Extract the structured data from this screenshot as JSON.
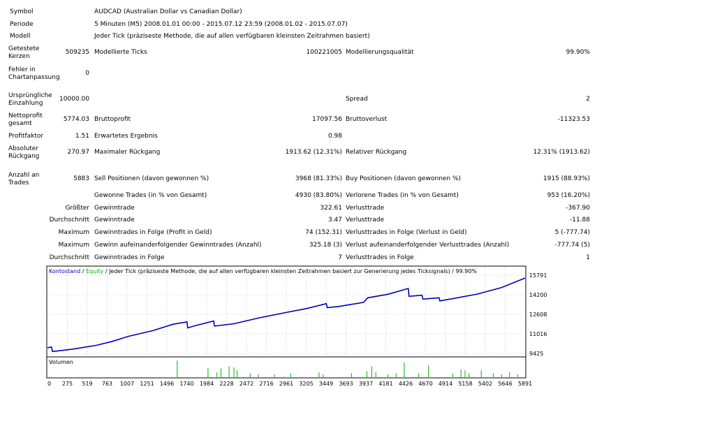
{
  "header": {
    "symbol_label": "Symbol",
    "symbol_value": "AUDCAD (Australian Dollar vs Canadian Dollar)",
    "period_label": "Periode",
    "period_value": "5 Minuten (M5) 2008.01.01 00:00 - 2015.07.12 23:59 (2008.01.02 - 2015.07.07)",
    "model_label": "Modell",
    "model_value": "Jeder Tick (präziseste Methode, die auf allen verfügbaren kleinsten Zeitrahmen basiert)"
  },
  "stats": {
    "bars_tested_label_1": "Getestete",
    "bars_tested_label_2": "Kerzen",
    "bars_tested": "509235",
    "ticks_modelled_label": "Modellierte Ticks",
    "ticks_modelled": "100221005",
    "modelling_quality_label": "Modellierungsqualität",
    "modelling_quality": "99.90%",
    "mismatch_label_1": "Fehler in",
    "mismatch_label_2": "Chartanpassung",
    "mismatch": "0",
    "initial_deposit_label_1": "Ursprüngliche",
    "initial_deposit_label_2": "Einzahlung",
    "initial_deposit": "10000.00",
    "spread_label": "Spread",
    "spread": "2",
    "net_profit_label_1": "Nettoprofit",
    "net_profit_label_2": "gesamt",
    "net_profit": "5774.03",
    "gross_profit_label": "Bruttoprofit",
    "gross_profit": "17097.56",
    "gross_loss_label": "Bruttoverlust",
    "gross_loss": "-11323.53",
    "profit_factor_label": "Profitfaktor",
    "profit_factor": "1.51",
    "expected_payoff_label": "Erwartetes Ergebnis",
    "expected_payoff": "0.98",
    "abs_dd_label_1": "Absoluter",
    "abs_dd_label_2": "Rückgang",
    "abs_dd": "270.97",
    "max_dd_label": "Maximaler Rückgang",
    "max_dd": "1913.62 (12.31%)",
    "rel_dd_label": "Relativer Rückgang",
    "rel_dd": "12.31% (1913.62)",
    "total_trades_label_1": "Anzahl an",
    "total_trades_label_2": "Trades",
    "total_trades": "5883",
    "short_label": "Sell Positionen (davon gewonnen %)",
    "short": "3968 (81.33%)",
    "long_label": "Buy Positionen (davon gewonnen %)",
    "long": "1915 (88.93%)",
    "profit_trades_label": "Gewonne Trades (in % von Gesamt)",
    "profit_trades": "4930 (83.80%)",
    "loss_trades_label": "Verlorene Trades (in % von Gesamt)",
    "loss_trades": "953 (16.20%)",
    "largest_prefix": "Größter",
    "largest_profit_label": "Gewinntrade",
    "largest_profit": "322.61",
    "largest_loss_label": "Verlusttrade",
    "largest_loss": "-367.90",
    "average_prefix": "Durchschnitt",
    "avg_profit_label": "Gewinntrade",
    "avg_profit": "3.47",
    "avg_loss_label": "Verlusttrade",
    "avg_loss": "-11.88",
    "max_prefix": "Maximum",
    "max_cons_wins_label": "Gewinntrades in Folge (Profit in Geld)",
    "max_cons_wins": "74 (152.31)",
    "max_cons_losses_label": "Verlusttrades in Folge (Verlust in Geld)",
    "max_cons_losses": "5 (-777.74)",
    "max_prefix_2": "Maximum",
    "max_cons_profit_label": "Gewinn aufeinanderfolgender Gewinntrades (Anzahl)",
    "max_cons_profit": "325.18 (3)",
    "max_cons_loss_label": "Verlust aufeinanderfolgender Verlusttrades (Anzahl)",
    "max_cons_loss": "-777.74 (5)",
    "average_prefix_2": "Durchschnitt",
    "avg_cons_wins_label": "Gewinntrades in Folge",
    "avg_cons_wins": "7",
    "avg_cons_losses_label": "Verlusttrades in Folge",
    "avg_cons_losses": "1"
  },
  "chart": {
    "legend_balance": "Kontostand",
    "legend_sep1": " / ",
    "legend_equity": "Equity",
    "legend_rest": " / Jeder Tick (präziseste Methode, die auf allen verfügbaren kleinsten Zeitrahmen basiert zur Generierung jedes Ticksignals) / 99.90%",
    "volume_label": "Volumen",
    "colors": {
      "balance": "#0000b4",
      "equity": "#00b400",
      "volume": "#00b400",
      "grid": "#c8c8c8",
      "border": "#000000"
    }
  },
  "chart_data": {
    "type": "line",
    "series": [
      {
        "name": "Kontostand",
        "x": [
          0,
          50,
          60,
          120,
          300,
          600,
          800,
          1000,
          1300,
          1550,
          1720,
          1730,
          1800,
          2050,
          2060,
          2300,
          2600,
          2900,
          3200,
          3440,
          3450,
          3600,
          3900,
          3950,
          4200,
          4450,
          4460,
          4620,
          4630,
          4830,
          4840,
          5000,
          5300,
          5600,
          5891
        ],
        "y": [
          9890,
          9940,
          9590,
          9620,
          9760,
          10080,
          10400,
          10820,
          11280,
          11800,
          11990,
          11500,
          11640,
          12060,
          11650,
          11840,
          12300,
          12700,
          13080,
          13480,
          13150,
          13250,
          13580,
          13950,
          14240,
          14710,
          14070,
          14160,
          13840,
          13950,
          13700,
          13880,
          14250,
          14780,
          15560
        ]
      }
    ],
    "y_ticks": [
      "15791",
      "14200",
      "12608",
      "11016",
      "9425"
    ],
    "x_ticks": [
      "0",
      "275",
      "519",
      "763",
      "1007",
      "1251",
      "1496",
      "1740",
      "1984",
      "2228",
      "2472",
      "2716",
      "2961",
      "3205",
      "3449",
      "3693",
      "3937",
      "4181",
      "4426",
      "4670",
      "4914",
      "5158",
      "5402",
      "5646",
      "5891"
    ],
    "ylim": [
      9425,
      15791
    ],
    "xlim": [
      0,
      5891
    ],
    "volume": [
      [
        1600,
        0.85
      ],
      [
        1980,
        0.45
      ],
      [
        2090,
        0.25
      ],
      [
        2140,
        0.45
      ],
      [
        2240,
        0.55
      ],
      [
        2300,
        0.5
      ],
      [
        2340,
        0.35
      ],
      [
        2500,
        0.2
      ],
      [
        2600,
        0.15
      ],
      [
        2800,
        0.15
      ],
      [
        3000,
        0.2
      ],
      [
        3350,
        0.25
      ],
      [
        3400,
        0.15
      ],
      [
        3750,
        0.2
      ],
      [
        3940,
        0.3
      ],
      [
        4000,
        0.55
      ],
      [
        4050,
        0.25
      ],
      [
        4200,
        0.15
      ],
      [
        4300,
        0.2
      ],
      [
        4400,
        0.75
      ],
      [
        4580,
        0.2
      ],
      [
        4700,
        0.6
      ],
      [
        5000,
        0.2
      ],
      [
        5100,
        0.4
      ],
      [
        5150,
        0.35
      ],
      [
        5200,
        0.2
      ],
      [
        5350,
        0.35
      ],
      [
        5500,
        0.2
      ],
      [
        5600,
        0.15
      ],
      [
        5700,
        0.25
      ],
      [
        5800,
        0.15
      ]
    ]
  }
}
